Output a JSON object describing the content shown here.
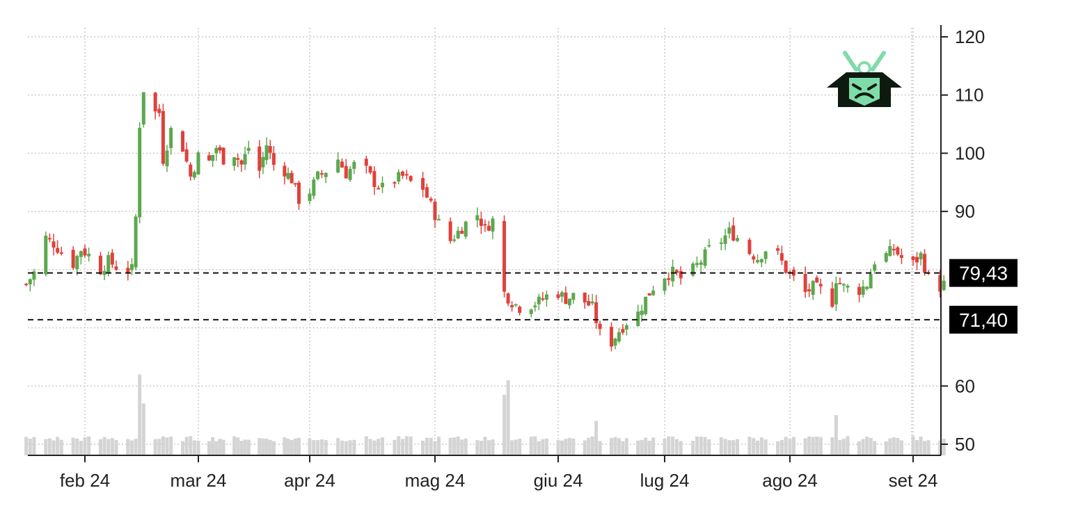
{
  "chart_data": {
    "type": "candlestick",
    "title": "",
    "xlabel": "",
    "ylabel": "",
    "ylim": [
      48,
      122
    ],
    "y_ticks": [
      "120",
      "110",
      "100",
      "90",
      "60",
      "50"
    ],
    "y_tick_values": [
      120,
      110,
      100,
      90,
      60,
      50
    ],
    "x_tick_labels": [
      "feb 24",
      "mar 24",
      "apr 24",
      "mag 24",
      "giu 24",
      "lug 24",
      "ago 24",
      "set 24"
    ],
    "x_tick_dates": [
      "2024-02-01",
      "2024-03-01",
      "2024-04-01",
      "2024-05-02",
      "2024-06-03",
      "2024-07-01",
      "2024-08-01",
      "2024-09-02"
    ],
    "date_range": [
      "2024-01-17",
      "2024-09-10"
    ],
    "grid": true,
    "up_color": "#5ca84e",
    "down_color": "#e0413c",
    "volume_color": "#d4d4d4",
    "price_lines": [
      {
        "label": "79,43",
        "value": 79.43
      },
      {
        "label": "71,40",
        "value": 71.4
      }
    ],
    "close_series": [
      [
        "2024-01-17",
        77.5
      ],
      [
        "2024-01-19",
        79.5
      ],
      [
        "2024-01-22",
        85.5
      ],
      [
        "2024-01-24",
        84.5
      ],
      [
        "2024-01-26",
        83.0
      ],
      [
        "2024-01-29",
        81.0
      ],
      [
        "2024-01-31",
        83.5
      ],
      [
        "2024-02-02",
        82.5
      ],
      [
        "2024-02-05",
        80.0
      ],
      [
        "2024-02-07",
        81.5
      ],
      [
        "2024-02-09",
        80.5
      ],
      [
        "2024-02-12",
        80.0
      ],
      [
        "2024-02-14",
        89.0
      ],
      [
        "2024-02-15",
        105.0
      ],
      [
        "2024-02-16",
        111.0
      ],
      [
        "2024-02-19",
        107.0
      ],
      [
        "2024-02-21",
        99.0
      ],
      [
        "2024-02-23",
        104.0
      ],
      [
        "2024-02-26",
        101.0
      ],
      [
        "2024-02-28",
        96.0
      ],
      [
        "2024-03-01",
        99.5
      ],
      [
        "2024-03-04",
        98.5
      ],
      [
        "2024-03-06",
        101.0
      ],
      [
        "2024-03-08",
        99.0
      ],
      [
        "2024-03-11",
        100.0
      ],
      [
        "2024-03-13",
        98.0
      ],
      [
        "2024-03-15",
        101.0
      ],
      [
        "2024-03-18",
        97.0
      ],
      [
        "2024-03-20",
        101.5
      ],
      [
        "2024-03-22",
        98.0
      ],
      [
        "2024-03-25",
        97.0
      ],
      [
        "2024-03-27",
        95.5
      ],
      [
        "2024-03-29",
        92.0
      ],
      [
        "2024-04-01",
        93.5
      ],
      [
        "2024-04-03",
        96.0
      ],
      [
        "2024-04-05",
        97.0
      ],
      [
        "2024-04-08",
        99.0
      ],
      [
        "2024-04-10",
        96.5
      ],
      [
        "2024-04-12",
        98.0
      ],
      [
        "2024-04-15",
        97.0
      ],
      [
        "2024-04-17",
        95.0
      ],
      [
        "2024-04-19",
        94.0
      ],
      [
        "2024-04-22",
        95.5
      ],
      [
        "2024-04-24",
        96.0
      ],
      [
        "2024-04-26",
        95.0
      ],
      [
        "2024-04-29",
        94.0
      ],
      [
        "2024-05-01",
        91.0
      ],
      [
        "2024-05-03",
        88.0
      ],
      [
        "2024-05-06",
        85.0
      ],
      [
        "2024-05-08",
        86.5
      ],
      [
        "2024-05-10",
        88.0
      ],
      [
        "2024-05-13",
        89.5
      ],
      [
        "2024-05-15",
        87.0
      ],
      [
        "2024-05-17",
        88.5
      ],
      [
        "2024-05-20",
        76.0
      ],
      [
        "2024-05-22",
        74.5
      ],
      [
        "2024-05-24",
        73.5
      ],
      [
        "2024-05-27",
        74.0
      ],
      [
        "2024-05-29",
        74.5
      ],
      [
        "2024-05-31",
        75.5
      ],
      [
        "2024-06-03",
        76.0
      ],
      [
        "2024-06-05",
        75.0
      ],
      [
        "2024-06-07",
        75.5
      ],
      [
        "2024-06-10",
        74.5
      ],
      [
        "2024-06-12",
        73.5
      ],
      [
        "2024-06-14",
        69.0
      ],
      [
        "2024-06-17",
        67.5
      ],
      [
        "2024-06-19",
        69.5
      ],
      [
        "2024-06-21",
        71.0
      ],
      [
        "2024-06-24",
        72.5
      ],
      [
        "2024-06-26",
        75.0
      ],
      [
        "2024-06-28",
        77.0
      ],
      [
        "2024-07-01",
        79.0
      ],
      [
        "2024-07-03",
        79.5
      ],
      [
        "2024-07-05",
        78.5
      ],
      [
        "2024-07-08",
        80.0
      ],
      [
        "2024-07-10",
        81.5
      ],
      [
        "2024-07-12",
        83.5
      ],
      [
        "2024-07-15",
        85.0
      ],
      [
        "2024-07-17",
        86.5
      ],
      [
        "2024-07-19",
        85.5
      ],
      [
        "2024-07-22",
        83.0
      ],
      [
        "2024-07-24",
        82.0
      ],
      [
        "2024-07-26",
        83.5
      ],
      [
        "2024-07-29",
        82.5
      ],
      [
        "2024-07-31",
        80.0
      ],
      [
        "2024-08-02",
        78.5
      ],
      [
        "2024-08-05",
        76.0
      ],
      [
        "2024-08-07",
        77.0
      ],
      [
        "2024-08-09",
        76.5
      ],
      [
        "2024-08-12",
        74.5
      ],
      [
        "2024-08-13",
        78.5
      ],
      [
        "2024-08-15",
        77.0
      ],
      [
        "2024-08-19",
        76.5
      ],
      [
        "2024-08-21",
        77.5
      ],
      [
        "2024-08-23",
        81.5
      ],
      [
        "2024-08-26",
        82.5
      ],
      [
        "2024-08-28",
        83.5
      ],
      [
        "2024-08-30",
        82.0
      ],
      [
        "2024-09-02",
        81.0
      ],
      [
        "2024-09-04",
        82.5
      ],
      [
        "2024-09-06",
        78.5
      ],
      [
        "2024-09-09",
        77.0
      ],
      [
        "2024-09-10",
        77.5
      ]
    ],
    "volume_spikes": [
      [
        "2024-02-15",
        62
      ],
      [
        "2024-02-16",
        57
      ],
      [
        "2024-05-20",
        58.5
      ],
      [
        "2024-05-21",
        61
      ],
      [
        "2024-06-13",
        54
      ],
      [
        "2024-08-13",
        55
      ]
    ],
    "volume_base": 50.5
  },
  "logo": {
    "icon": "samurai-mask-icon",
    "accent": "#7fdcaa",
    "dark": "#0e1a10"
  }
}
